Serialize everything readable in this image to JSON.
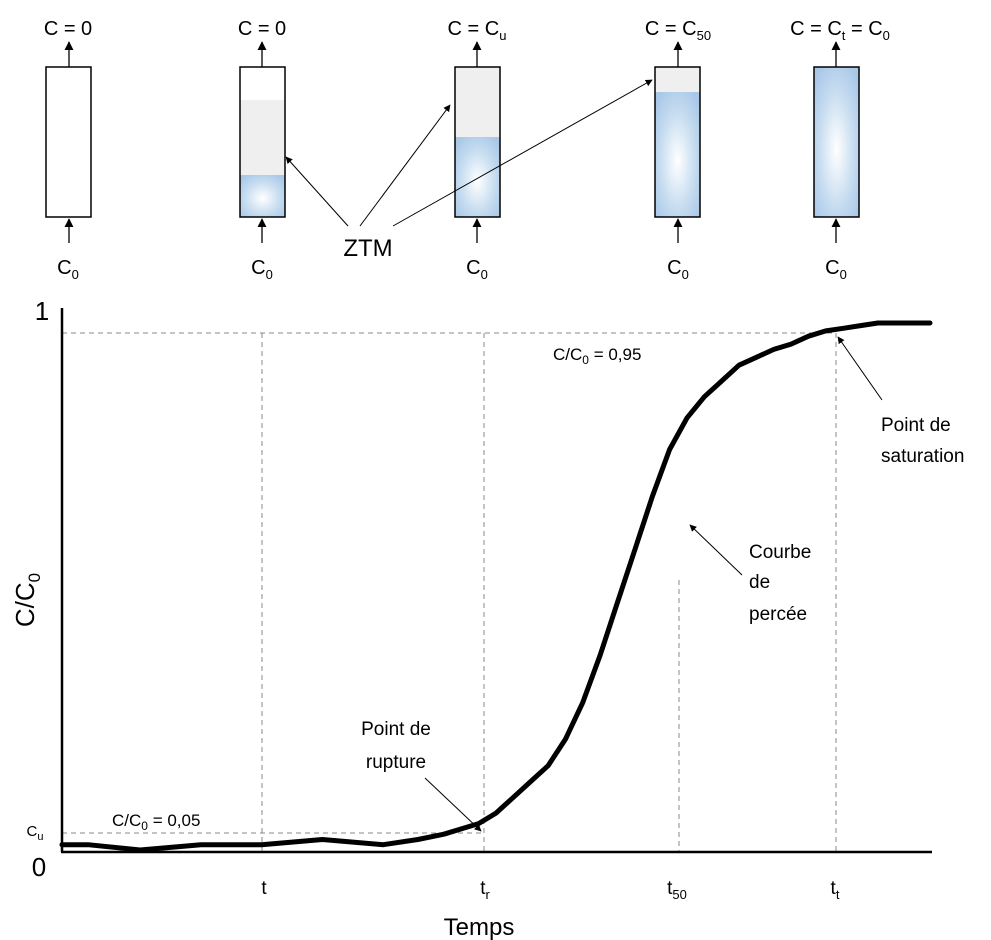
{
  "columns": [
    {
      "top": "C = 0",
      "bottom": "C",
      "bottom_sub": "0",
      "fill": 0
    },
    {
      "top": "C = 0",
      "bottom": "C",
      "bottom_sub": "0",
      "fill": 0.3
    },
    {
      "top": "C = C",
      "top_sub": "u",
      "bottom": "C",
      "bottom_sub": "0",
      "fill": 0.55
    },
    {
      "top": "C = C",
      "top_sub": "50",
      "bottom": "C",
      "bottom_sub": "0",
      "fill": 0.82
    },
    {
      "top": "C = C",
      "top_sub": "t",
      "top_tail": " = C",
      "top_tail_sub": "0",
      "bottom": "C",
      "bottom_sub": "0",
      "fill": 1.0
    }
  ],
  "ztm_label": "ZTM",
  "chart": {
    "ylabel": "C/C",
    "ylabel_sub": "0",
    "xlabel": "Temps",
    "y_one": "1",
    "y_zero": "0",
    "y_cu": "C",
    "y_cu_sub": "u",
    "x_ticks": [
      {
        "label": "t",
        "sub": ""
      },
      {
        "label": "t",
        "sub": "r"
      },
      {
        "label": "t",
        "sub": "50"
      },
      {
        "label": "t",
        "sub": "t"
      }
    ],
    "ratio_low": {
      "pre": "C/C",
      "sub": "0",
      "post": " = 0,05"
    },
    "ratio_high": {
      "pre": "C/C",
      "sub": "0",
      "post": " = 0,95"
    },
    "annotations": {
      "rupture": [
        "Point de",
        "rupture"
      ],
      "courbe": [
        "Courbe",
        "de",
        "percée"
      ],
      "saturation": [
        "Point de",
        "saturation"
      ]
    }
  },
  "chart_data": {
    "type": "line",
    "title": "",
    "xlabel": "Temps",
    "ylabel": "C/C0",
    "ylim": [
      0,
      1
    ],
    "x_ticks": [
      "t",
      "tr",
      "t50",
      "tt"
    ],
    "reference_lines": {
      "low": 0.05,
      "high": 0.95
    },
    "series": [
      {
        "x": [
          0,
          0.03,
          0.09,
          0.16,
          0.23,
          0.3,
          0.37,
          0.41,
          0.44,
          0.46,
          0.48,
          0.5,
          0.52,
          0.54,
          0.56,
          0.58,
          0.6,
          0.62,
          0.64,
          0.66,
          0.68,
          0.7,
          0.72,
          0.74,
          0.76,
          0.78,
          0.8,
          0.82,
          0.84,
          0.86,
          0.88,
          0.9,
          0.92,
          0.94,
          0.97,
          1.0
        ],
        "y": [
          0.01,
          0.01,
          0.0,
          0.01,
          0.01,
          0.02,
          0.01,
          0.02,
          0.03,
          0.04,
          0.05,
          0.07,
          0.1,
          0.13,
          0.16,
          0.21,
          0.28,
          0.37,
          0.47,
          0.57,
          0.67,
          0.76,
          0.82,
          0.86,
          0.89,
          0.92,
          0.935,
          0.95,
          0.96,
          0.975,
          0.985,
          0.99,
          0.995,
          1.0,
          1.0,
          1.0
        ]
      }
    ]
  }
}
